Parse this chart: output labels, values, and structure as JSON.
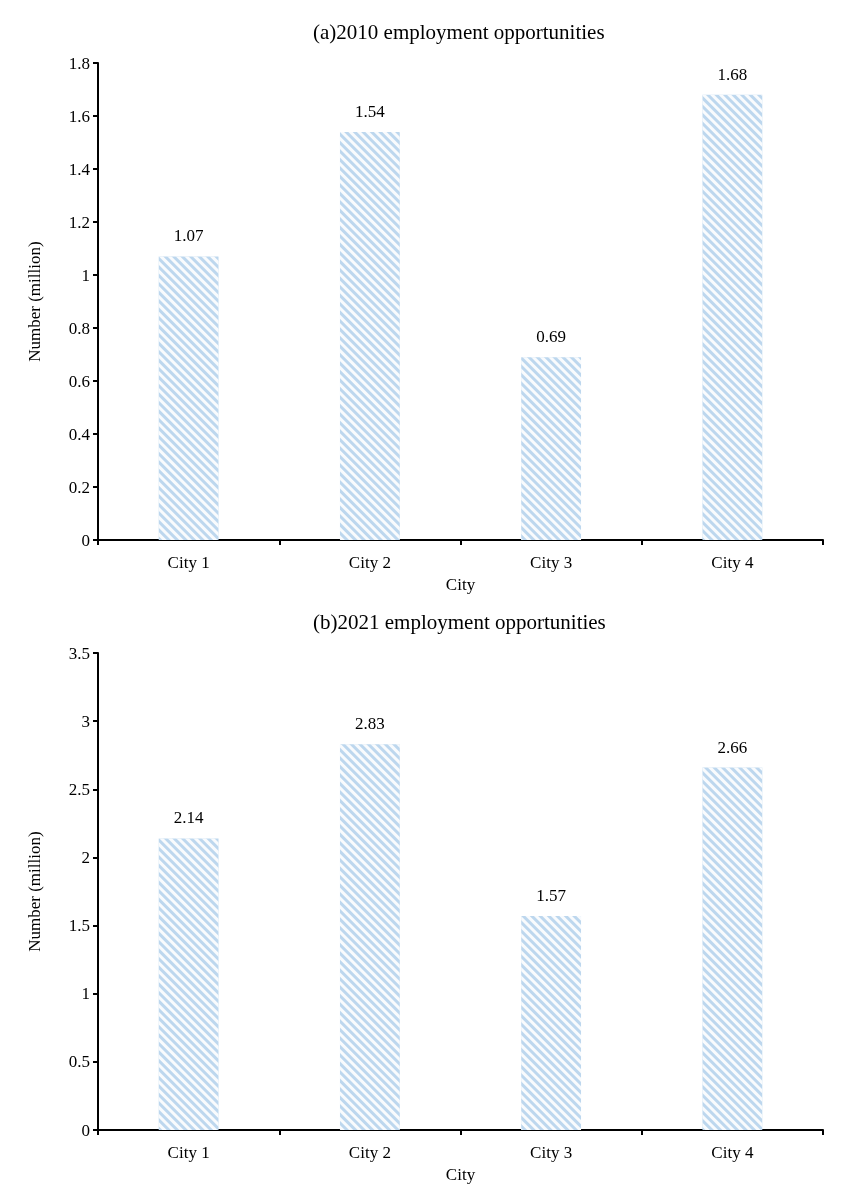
{
  "chart_data": [
    {
      "type": "bar",
      "title": "(a)2010 employment opportunities",
      "xlabel": "City",
      "ylabel": "Number (million)",
      "categories": [
        "City 1",
        "City 2",
        "City 3",
        "City 4"
      ],
      "values": [
        1.07,
        1.54,
        0.69,
        1.68
      ],
      "color": "#bdd7ee",
      "ylim": [
        0,
        1.8
      ],
      "yticks": [
        0,
        0.2,
        0.4,
        0.6,
        0.8,
        1,
        1.2,
        1.4,
        1.6,
        1.8
      ],
      "grid": false,
      "data_labels": true
    },
    {
      "type": "bar",
      "title": "(b)2021 employment opportunities",
      "xlabel": "City",
      "ylabel": "Number (million)",
      "categories": [
        "City 1",
        "City 2",
        "City 3",
        "City 4"
      ],
      "values": [
        2.14,
        2.83,
        1.57,
        2.66
      ],
      "color": "#bdd7ee",
      "ylim": [
        0,
        3.5
      ],
      "yticks": [
        0,
        0.5,
        1,
        1.5,
        2,
        2.5,
        3,
        3.5
      ],
      "grid": false,
      "data_labels": true
    }
  ]
}
